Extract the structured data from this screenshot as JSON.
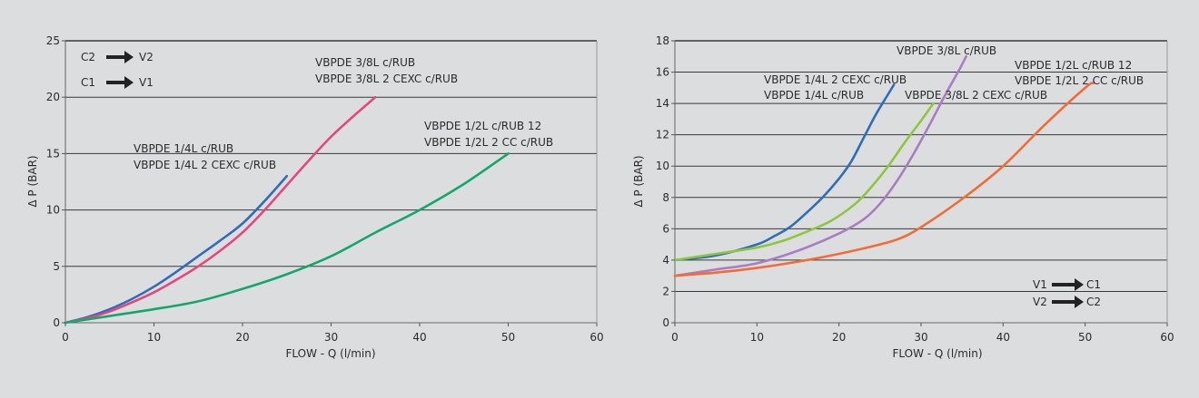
{
  "chart_data": [
    {
      "type": "line",
      "xlabel": "FLOW - Q (l/min)",
      "ylabel": "Δ P (BAR)",
      "xlim": [
        0,
        60
      ],
      "ylim": [
        0,
        25
      ],
      "xticks": [
        "0",
        "10",
        "20",
        "30",
        "40",
        "50",
        "60"
      ],
      "yticks": [
        "0",
        "5",
        "10",
        "15",
        "20",
        "25"
      ],
      "grid": "horizontal",
      "flow_direction": [
        {
          "from": "C2",
          "to": "V2"
        },
        {
          "from": "C1",
          "to": "V1"
        }
      ],
      "series": [
        {
          "labels": [
            "VBPDE 1/4L c/RUB",
            "VBPDE 1/4L 2 CEXC c/RUB"
          ],
          "color": "#2f6db6",
          "x": [
            0,
            2.5,
            5,
            7.5,
            10,
            12.5,
            15,
            17.5,
            20,
            22.5,
            25
          ],
          "y": [
            0,
            0.5,
            1.2,
            2.1,
            3.2,
            4.5,
            5.9,
            7.3,
            8.8,
            10.8,
            13
          ]
        },
        {
          "labels": [
            "VBPDE 3/8L c/RUB",
            "VBPDE 3/8L 2 CEXC c/RUB"
          ],
          "color": "#e8457c",
          "x": [
            0,
            2.5,
            5,
            7.5,
            10,
            12.5,
            15,
            17.5,
            20,
            22.5,
            25,
            27.5,
            30,
            32.5,
            35
          ],
          "y": [
            0,
            0.4,
            1,
            1.8,
            2.7,
            3.8,
            5,
            6.4,
            8,
            10,
            12.2,
            14.4,
            16.5,
            18.3,
            20
          ]
        },
        {
          "labels": [
            "VBPDE 1/2L c/RUB 12",
            "VBPDE 1/2L 2 CC c/RUB"
          ],
          "color": "#13a86b",
          "x": [
            0,
            5,
            10,
            15,
            20,
            25,
            30,
            35,
            40,
            45,
            50
          ],
          "y": [
            0,
            0.6,
            1.2,
            1.9,
            3,
            4.3,
            5.9,
            8,
            10,
            12.3,
            15
          ]
        }
      ]
    },
    {
      "type": "line",
      "xlabel": "FLOW - Q (l/min)",
      "ylabel": "Δ P (BAR)",
      "xlim": [
        0,
        60
      ],
      "ylim": [
        0,
        18
      ],
      "xticks": [
        "0",
        "10",
        "20",
        "30",
        "40",
        "50",
        "60"
      ],
      "yticks": [
        "0",
        "2",
        "4",
        "6",
        "8",
        "10",
        "12",
        "14",
        "16",
        "18"
      ],
      "grid": "horizontal",
      "flow_direction": [
        {
          "from": "V1",
          "to": "C1"
        },
        {
          "from": "V2",
          "to": "C2"
        }
      ],
      "series": [
        {
          "labels": [
            "VBPDE 1/4L 2 CEXC c/RUB",
            "VBPDE 1/4L c/RUB"
          ],
          "color": "#2f6db6",
          "x": [
            0,
            5,
            10,
            12,
            14,
            16,
            18,
            20,
            21.5,
            23,
            24.5,
            26,
            26.7
          ],
          "y": [
            4,
            4.3,
            5,
            5.5,
            6.1,
            7,
            8,
            9.2,
            10.3,
            11.8,
            13.3,
            14.6,
            15.2
          ]
        },
        {
          "labels": [
            "VBPDE 3/8L 2 CEXC c/RUB"
          ],
          "color": "#8dc63f",
          "x": [
            0,
            5,
            10,
            13,
            16,
            19,
            22,
            24,
            26,
            28,
            30,
            31.5
          ],
          "y": [
            4,
            4.4,
            4.8,
            5.2,
            5.8,
            6.5,
            7.6,
            8.7,
            10,
            11.5,
            12.9,
            14
          ]
        },
        {
          "labels": [
            "VBPDE 3/8L c/RUB"
          ],
          "color": "#a97dc1",
          "x": [
            0,
            5,
            10,
            15,
            20,
            23,
            25,
            27,
            29,
            31,
            33,
            34.5,
            35.5
          ],
          "y": [
            3,
            3.4,
            3.8,
            4.6,
            5.7,
            6.6,
            7.6,
            9,
            10.7,
            12.6,
            14.6,
            16,
            17
          ]
        },
        {
          "labels": [
            "VBPDE 1/2L c/RUB 12",
            "VBPDE 1/2L 2 CC c/RUB"
          ],
          "color": "#f26c35",
          "x": [
            0,
            5,
            10,
            15,
            20,
            25,
            27.5,
            30,
            35,
            40,
            45,
            50,
            51
          ],
          "y": [
            3,
            3.2,
            3.5,
            3.9,
            4.4,
            5,
            5.4,
            6.1,
            7.9,
            10,
            12.6,
            15,
            15.3
          ]
        }
      ]
    }
  ]
}
